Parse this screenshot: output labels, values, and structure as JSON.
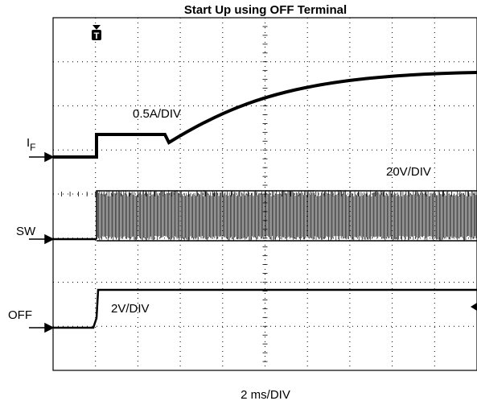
{
  "title": "Start Up using OFF Terminal",
  "channels": [
    {
      "label": "I",
      "subscript": "F",
      "scale": "0.5A/DIV"
    },
    {
      "label": "SW",
      "scale": "20V/DIV"
    },
    {
      "label": "OFF",
      "scale": "2V/DIV"
    }
  ],
  "trigger": "T",
  "timebase": "2 ms/DIV"
}
